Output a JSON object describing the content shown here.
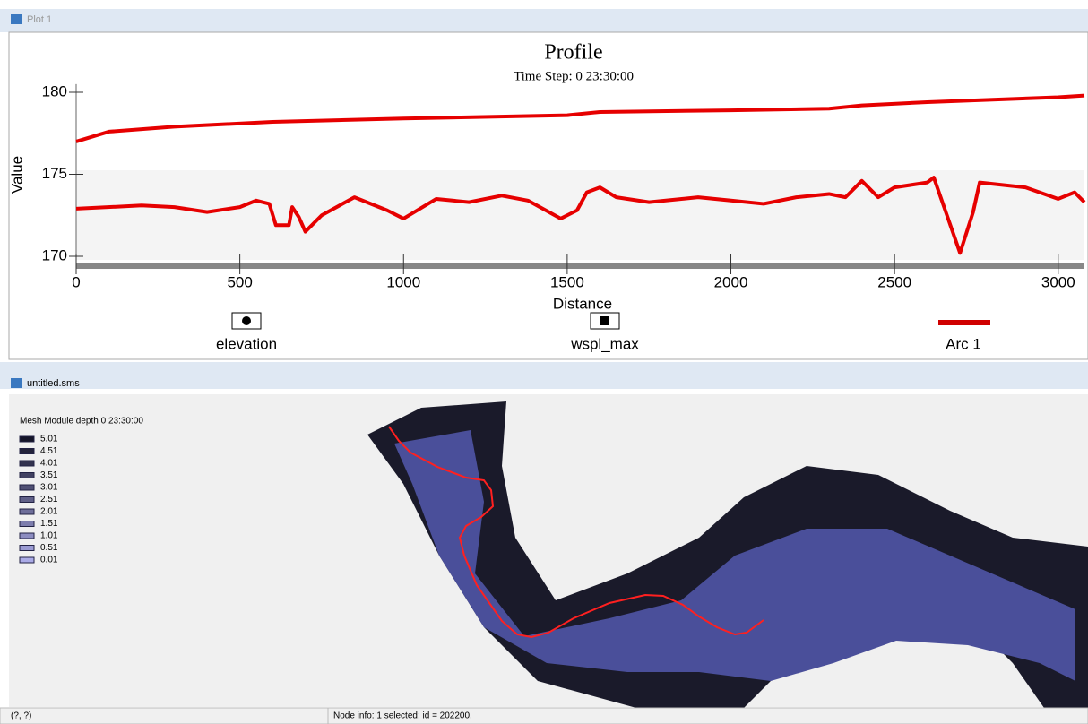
{
  "plot_window": {
    "title": "Plot 1"
  },
  "chart_data": {
    "type": "line",
    "title": "Profile",
    "subtitle": "Time Step: 0 23:30:00",
    "x_label": "Distance",
    "y_label": "Value",
    "xlim": [
      0,
      3080
    ],
    "ylim": [
      169.5,
      180.5
    ],
    "xticks": [
      0,
      500,
      1000,
      1500,
      2000,
      2500,
      3000
    ],
    "yticks": [
      170,
      175,
      180
    ],
    "series": [
      {
        "name": "elevation",
        "color": "#e60000",
        "marker": "circle",
        "x": [
          0,
          200,
          300,
          400,
          500,
          550,
          590,
          610,
          650,
          660,
          680,
          700,
          750,
          850,
          950,
          1000,
          1050,
          1100,
          1200,
          1300,
          1380,
          1480,
          1530,
          1560,
          1600,
          1650,
          1750,
          1900,
          2000,
          2100,
          2200,
          2300,
          2350,
          2400,
          2450,
          2500,
          2600,
          2620,
          2660,
          2700,
          2740,
          2760,
          2900,
          3000,
          3050,
          3080
        ],
        "values": [
          172.9,
          173.1,
          173.0,
          172.7,
          173.0,
          173.4,
          173.2,
          171.9,
          171.9,
          173.0,
          172.4,
          171.5,
          172.5,
          173.6,
          172.8,
          172.3,
          172.9,
          173.5,
          173.3,
          173.7,
          173.4,
          172.3,
          172.8,
          173.9,
          174.2,
          173.6,
          173.3,
          173.6,
          173.4,
          173.2,
          173.6,
          173.8,
          173.6,
          174.6,
          173.6,
          174.2,
          174.5,
          174.8,
          172.5,
          170.2,
          172.7,
          174.5,
          174.2,
          173.5,
          173.9,
          173.3
        ]
      },
      {
        "name": "wspl_max",
        "color": "#e60000",
        "marker": "square",
        "x": [
          0,
          100,
          300,
          600,
          1000,
          1500,
          1600,
          2000,
          2300,
          2400,
          2600,
          3000,
          3080
        ],
        "values": [
          177.0,
          177.6,
          177.9,
          178.2,
          178.4,
          178.6,
          178.8,
          178.9,
          179.0,
          179.2,
          179.4,
          179.7,
          179.8
        ]
      }
    ],
    "arc": {
      "name": "Arc 1",
      "color": "#d00000"
    }
  },
  "mesh_window": {
    "title": "untitled.sms",
    "legend_title": "Mesh Module depth 0 23:30:00",
    "legend_values": [
      5.01,
      4.51,
      4.01,
      3.51,
      3.01,
      2.51,
      2.01,
      1.51,
      1.01,
      0.51,
      0.01
    ]
  },
  "status_bar": {
    "coords": "(?, ?)",
    "info": "Node info: 1 selected; id = 202200."
  }
}
